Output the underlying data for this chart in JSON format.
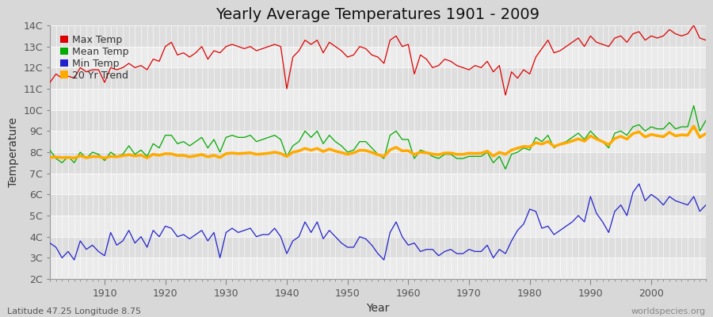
{
  "title": "Yearly Average Temperatures 1901 - 2009",
  "xlabel": "Year",
  "ylabel": "Temperature",
  "footnote_left": "Latitude 47.25 Longitude 8.75",
  "footnote_right": "worldspecies.org",
  "years": [
    1901,
    1902,
    1903,
    1904,
    1905,
    1906,
    1907,
    1908,
    1909,
    1910,
    1911,
    1912,
    1913,
    1914,
    1915,
    1916,
    1917,
    1918,
    1919,
    1920,
    1921,
    1922,
    1923,
    1924,
    1925,
    1926,
    1927,
    1928,
    1929,
    1930,
    1931,
    1932,
    1933,
    1934,
    1935,
    1936,
    1937,
    1938,
    1939,
    1940,
    1941,
    1942,
    1943,
    1944,
    1945,
    1946,
    1947,
    1948,
    1949,
    1950,
    1951,
    1952,
    1953,
    1954,
    1955,
    1956,
    1957,
    1958,
    1959,
    1960,
    1961,
    1962,
    1963,
    1964,
    1965,
    1966,
    1967,
    1968,
    1969,
    1970,
    1971,
    1972,
    1973,
    1974,
    1975,
    1976,
    1977,
    1978,
    1979,
    1980,
    1981,
    1982,
    1983,
    1984,
    1985,
    1986,
    1987,
    1988,
    1989,
    1990,
    1991,
    1992,
    1993,
    1994,
    1995,
    1996,
    1997,
    1998,
    1999,
    2000,
    2001,
    2002,
    2003,
    2004,
    2005,
    2006,
    2007,
    2008,
    2009
  ],
  "max_temp": [
    11.3,
    11.7,
    11.5,
    11.6,
    11.5,
    12.0,
    11.8,
    11.9,
    11.9,
    11.3,
    12.0,
    11.9,
    12.0,
    12.2,
    12.0,
    12.1,
    11.9,
    12.4,
    12.3,
    13.0,
    13.2,
    12.6,
    12.7,
    12.5,
    12.7,
    13.0,
    12.4,
    12.8,
    12.7,
    13.0,
    13.1,
    13.0,
    12.9,
    13.0,
    12.8,
    12.9,
    13.0,
    13.1,
    13.0,
    11.0,
    12.5,
    12.8,
    13.3,
    13.1,
    13.3,
    12.7,
    13.2,
    13.0,
    12.8,
    12.5,
    12.6,
    13.0,
    12.9,
    12.6,
    12.5,
    12.2,
    13.3,
    13.5,
    13.0,
    13.1,
    11.7,
    12.6,
    12.4,
    12.0,
    12.1,
    12.4,
    12.3,
    12.1,
    12.0,
    11.9,
    12.1,
    12.0,
    12.3,
    11.8,
    12.1,
    10.7,
    11.8,
    11.5,
    11.9,
    11.7,
    12.5,
    12.9,
    13.3,
    12.7,
    12.8,
    13.0,
    13.2,
    13.4,
    13.0,
    13.5,
    13.2,
    13.1,
    13.0,
    13.4,
    13.5,
    13.2,
    13.6,
    13.7,
    13.3,
    13.5,
    13.4,
    13.5,
    13.8,
    13.6,
    13.5,
    13.6,
    14.0,
    13.4,
    13.3
  ],
  "mean_temp": [
    8.1,
    7.7,
    7.5,
    7.8,
    7.5,
    8.0,
    7.7,
    8.0,
    7.9,
    7.6,
    8.0,
    7.8,
    7.9,
    8.3,
    7.9,
    8.1,
    7.8,
    8.4,
    8.2,
    8.8,
    8.8,
    8.4,
    8.5,
    8.3,
    8.5,
    8.7,
    8.2,
    8.6,
    8.0,
    8.7,
    8.8,
    8.7,
    8.7,
    8.8,
    8.5,
    8.6,
    8.7,
    8.8,
    8.6,
    7.8,
    8.3,
    8.5,
    9.0,
    8.7,
    9.0,
    8.4,
    8.8,
    8.5,
    8.3,
    8.0,
    8.1,
    8.5,
    8.5,
    8.2,
    7.9,
    7.7,
    8.8,
    9.0,
    8.6,
    8.6,
    7.7,
    8.1,
    8.0,
    7.8,
    7.7,
    7.9,
    7.9,
    7.7,
    7.7,
    7.8,
    7.8,
    7.8,
    8.0,
    7.5,
    7.8,
    7.2,
    7.9,
    8.0,
    8.2,
    8.1,
    8.7,
    8.5,
    8.8,
    8.2,
    8.4,
    8.5,
    8.7,
    8.9,
    8.6,
    9.0,
    8.7,
    8.5,
    8.2,
    8.9,
    9.0,
    8.8,
    9.2,
    9.3,
    9.0,
    9.2,
    9.1,
    9.1,
    9.4,
    9.1,
    9.2,
    9.2,
    10.2,
    9.0,
    9.5
  ],
  "min_temp": [
    3.7,
    3.5,
    3.0,
    3.3,
    2.9,
    3.8,
    3.4,
    3.6,
    3.3,
    3.1,
    4.2,
    3.6,
    3.8,
    4.3,
    3.7,
    4.0,
    3.5,
    4.3,
    4.0,
    4.5,
    4.4,
    4.0,
    4.1,
    3.9,
    4.1,
    4.3,
    3.8,
    4.2,
    3.0,
    4.2,
    4.4,
    4.2,
    4.3,
    4.4,
    4.0,
    4.1,
    4.1,
    4.4,
    4.0,
    3.2,
    3.8,
    4.0,
    4.7,
    4.2,
    4.7,
    3.9,
    4.3,
    4.0,
    3.7,
    3.5,
    3.5,
    4.0,
    3.9,
    3.6,
    3.2,
    2.9,
    4.2,
    4.7,
    4.0,
    3.6,
    3.7,
    3.3,
    3.4,
    3.4,
    3.1,
    3.3,
    3.4,
    3.2,
    3.2,
    3.4,
    3.3,
    3.3,
    3.6,
    3.0,
    3.4,
    3.2,
    3.8,
    4.3,
    4.6,
    5.3,
    5.2,
    4.4,
    4.5,
    4.1,
    4.3,
    4.5,
    4.7,
    5.0,
    4.7,
    5.9,
    5.1,
    4.7,
    4.2,
    5.2,
    5.5,
    5.0,
    6.1,
    6.5,
    5.7,
    6.0,
    5.8,
    5.5,
    5.9,
    5.7,
    5.6,
    5.5,
    5.9,
    5.2,
    5.5
  ],
  "trend_temp": [
    7.75,
    7.77,
    7.74,
    7.75,
    7.72,
    7.83,
    7.74,
    7.79,
    7.79,
    7.72,
    7.8,
    7.78,
    7.83,
    7.88,
    7.82,
    7.86,
    7.73,
    7.9,
    7.85,
    7.93,
    7.92,
    7.84,
    7.85,
    7.78,
    7.83,
    7.89,
    7.78,
    7.85,
    7.75,
    7.93,
    7.96,
    7.93,
    7.95,
    7.97,
    7.9,
    7.92,
    7.95,
    8.0,
    7.94,
    7.8,
    8.0,
    8.06,
    8.18,
    8.09,
    8.18,
    8.03,
    8.15,
    8.05,
    7.98,
    7.9,
    7.97,
    8.09,
    8.08,
    7.99,
    7.88,
    7.8,
    8.11,
    8.23,
    8.06,
    8.07,
    7.89,
    8.0,
    7.97,
    7.91,
    7.88,
    7.96,
    7.96,
    7.9,
    7.9,
    7.95,
    7.94,
    7.95,
    8.05,
    7.82,
    7.99,
    7.9,
    8.1,
    8.19,
    8.27,
    8.25,
    8.45,
    8.38,
    8.51,
    8.27,
    8.37,
    8.44,
    8.53,
    8.63,
    8.52,
    8.77,
    8.62,
    8.5,
    8.35,
    8.65,
    8.75,
    8.62,
    8.88,
    8.96,
    8.72,
    8.84,
    8.78,
    8.73,
    8.94,
    8.77,
    8.82,
    8.8,
    9.23,
    8.7,
    8.88
  ],
  "ylim": [
    2,
    14
  ],
  "yticks": [
    2,
    3,
    4,
    5,
    6,
    7,
    8,
    9,
    10,
    11,
    12,
    13,
    14
  ],
  "ytick_labels": [
    "2C",
    "3C",
    "4C",
    "5C",
    "6C",
    "7C",
    "8C",
    "9C",
    "10C",
    "11C",
    "12C",
    "13C",
    "14C"
  ],
  "xlim": [
    1901,
    2009
  ],
  "xticks": [
    1910,
    1920,
    1930,
    1940,
    1950,
    1960,
    1970,
    1980,
    1990,
    2000
  ],
  "bg_color": "#d8d8d8",
  "plot_bg_color": "#e8e8e8",
  "stripe_light": "#ebebeb",
  "stripe_dark": "#dedede",
  "grid_color": "#ffffff",
  "max_color": "#dd0000",
  "mean_color": "#00aa00",
  "min_color": "#2222cc",
  "trend_color": "#ffaa00",
  "title_fontsize": 14,
  "legend_fontsize": 9,
  "tick_fontsize": 9,
  "label_fontsize": 10
}
